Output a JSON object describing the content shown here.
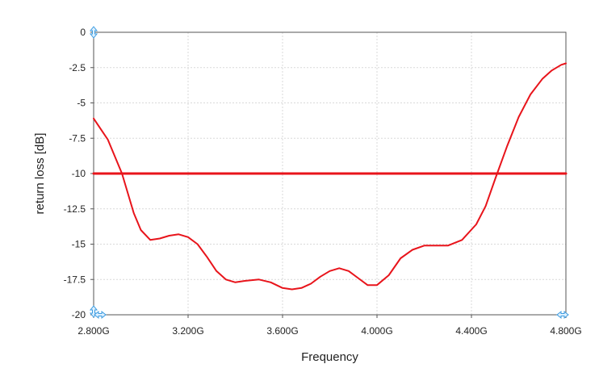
{
  "chart_data": {
    "type": "line",
    "title": "",
    "xlabel": "Frequency",
    "ylabel": "return loss [dB]",
    "xlim": [
      2.8,
      4.8
    ],
    "ylim": [
      -20,
      0
    ],
    "x_unit": "GHz",
    "x_tick_labels": [
      "2.800G",
      "3.200G",
      "3.600G",
      "4.000G",
      "4.400G",
      "4.800G"
    ],
    "x_ticks": [
      2.8,
      3.2,
      3.6,
      4.0,
      4.4,
      4.8
    ],
    "y_tick_labels": [
      "0",
      "-2.5",
      "-5",
      "-7.5",
      "-10",
      "-12.5",
      "-15",
      "-17.5",
      "-20"
    ],
    "y_ticks": [
      0,
      -2.5,
      -5,
      -7.5,
      -10,
      -12.5,
      -15,
      -17.5,
      -20
    ],
    "grid": true,
    "series": [
      {
        "color": "#e8141b",
        "x": [
          2.8,
          2.86,
          2.92,
          2.97,
          3.0,
          3.04,
          3.08,
          3.12,
          3.16,
          3.2,
          3.24,
          3.28,
          3.32,
          3.36,
          3.4,
          3.44,
          3.5,
          3.55,
          3.6,
          3.64,
          3.68,
          3.72,
          3.76,
          3.8,
          3.84,
          3.88,
          3.92,
          3.96,
          4.0,
          4.05,
          4.1,
          4.15,
          4.2,
          4.25,
          4.3,
          4.36,
          4.42,
          4.46,
          4.5,
          4.55,
          4.6,
          4.65,
          4.7,
          4.74,
          4.78,
          4.8
        ],
        "y": [
          -6.1,
          -7.6,
          -10.0,
          -12.8,
          -14.0,
          -14.7,
          -14.6,
          -14.4,
          -14.3,
          -14.5,
          -15.0,
          -15.9,
          -16.9,
          -17.5,
          -17.7,
          -17.6,
          -17.5,
          -17.7,
          -18.1,
          -18.2,
          -18.1,
          -17.8,
          -17.3,
          -16.9,
          -16.7,
          -16.9,
          -17.4,
          -17.9,
          -17.9,
          -17.2,
          -16.0,
          -15.4,
          -15.1,
          -15.1,
          -15.1,
          -14.7,
          -13.6,
          -12.3,
          -10.4,
          -8.1,
          -6.0,
          -4.4,
          -3.3,
          -2.7,
          -2.3,
          -2.2
        ]
      },
      {
        "color": "#e8141b",
        "x": [
          2.8,
          4.8
        ],
        "y": [
          -10,
          -10
        ]
      }
    ]
  }
}
